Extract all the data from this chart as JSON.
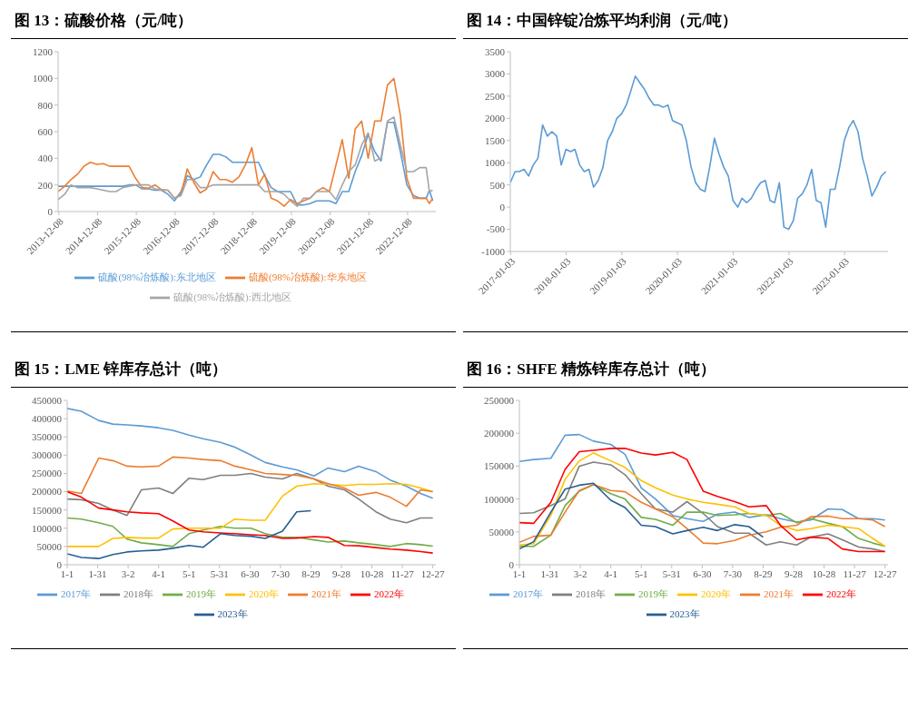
{
  "chart_data": [
    {
      "type": "line",
      "title": "图 13：硫酸价格（元/吨）",
      "legend": "bottom",
      "marker": "none",
      "x": [
        "2013-12",
        "2014-02",
        "2014-04",
        "2014-06",
        "2014-08",
        "2014-10",
        "2014-12",
        "2015-02",
        "2015-04",
        "2015-06",
        "2015-08",
        "2015-10",
        "2015-12",
        "2016-02",
        "2016-04",
        "2016-06",
        "2016-08",
        "2016-10",
        "2016-12",
        "2017-02",
        "2017-04",
        "2017-06",
        "2017-08",
        "2017-10",
        "2017-12",
        "2018-02",
        "2018-04",
        "2018-06",
        "2018-08",
        "2018-10",
        "2018-12",
        "2019-02",
        "2019-04",
        "2019-06",
        "2019-08",
        "2019-10",
        "2019-12",
        "2020-02",
        "2020-04",
        "2020-06",
        "2020-08",
        "2020-10",
        "2020-12",
        "2021-02",
        "2021-04",
        "2021-06",
        "2021-08",
        "2021-10",
        "2021-12",
        "2022-02",
        "2022-04",
        "2022-06",
        "2022-08",
        "2022-10",
        "2022-12",
        "2023-02",
        "2023-04",
        "2023-06",
        "2023-07",
        "2023-08"
      ],
      "series": [
        {
          "name": "硫酸(98%冶炼酸):东北地区",
          "color": "#5b9bd5",
          "values": [
            190,
            190,
            190,
            190,
            190,
            190,
            190,
            190,
            190,
            190,
            190,
            200,
            200,
            170,
            170,
            160,
            160,
            130,
            80,
            150,
            270,
            240,
            260,
            350,
            430,
            430,
            410,
            370,
            370,
            370,
            370,
            370,
            270,
            180,
            150,
            150,
            150,
            50,
            50,
            60,
            80,
            80,
            80,
            60,
            150,
            150,
            300,
            420,
            580,
            450,
            380,
            670,
            670,
            450,
            200,
            120,
            100,
            100,
            160,
            80
          ]
        },
        {
          "name": "硫酸(98%冶炼酸):华东地区",
          "color": "#ed7d31",
          "values": [
            150,
            190,
            240,
            280,
            340,
            370,
            355,
            360,
            340,
            340,
            340,
            340,
            250,
            180,
            175,
            200,
            165,
            160,
            100,
            130,
            320,
            220,
            140,
            170,
            300,
            240,
            240,
            220,
            260,
            350,
            480,
            200,
            280,
            100,
            80,
            40,
            90,
            60,
            80,
            100,
            150,
            180,
            150,
            350,
            540,
            250,
            620,
            680,
            400,
            680,
            680,
            950,
            1000,
            720,
            250,
            100,
            100,
            100,
            60,
            100
          ]
        },
        {
          "name": "硫酸(98%冶炼酸):西北地区",
          "color": "#a5a5a5",
          "values": [
            90,
            130,
            200,
            180,
            180,
            180,
            170,
            160,
            150,
            150,
            180,
            190,
            200,
            200,
            200,
            170,
            160,
            160,
            100,
            120,
            240,
            240,
            180,
            180,
            200,
            200,
            200,
            200,
            200,
            200,
            200,
            200,
            150,
            150,
            150,
            130,
            80,
            40,
            100,
            100,
            150,
            150,
            150,
            90,
            200,
            300,
            350,
            500,
            590,
            380,
            400,
            680,
            710,
            500,
            300,
            300,
            330,
            330,
            150,
            160
          ]
        }
      ],
      "xlim": [
        "2013-12-01",
        "2023-08-31"
      ],
      "xticks": [
        "2013-12-08",
        "2014-12-08",
        "2015-12-08",
        "2016-12-08",
        "2017-12-08",
        "2018-12-08",
        "2019-12-08",
        "2020-12-08",
        "2021-12-08",
        "2022-12-08"
      ],
      "ylim": [
        0,
        1200
      ],
      "yticks": [
        0,
        200,
        400,
        600,
        800,
        1000,
        1200
      ]
    },
    {
      "type": "line",
      "title": "图 14：中国锌锭冶炼平均利润（元/吨）",
      "legend": false,
      "marker": "none",
      "color": "#5b9bd5",
      "x": [
        "2017-01",
        "2017-02",
        "2017-03",
        "2017-04",
        "2017-05",
        "2017-06",
        "2017-07",
        "2017-08",
        "2017-09",
        "2017-10",
        "2017-11",
        "2017-12",
        "2018-01",
        "2018-02",
        "2018-03",
        "2018-04",
        "2018-05",
        "2018-06",
        "2018-07",
        "2018-08",
        "2018-09",
        "2018-10",
        "2018-11",
        "2018-12",
        "2019-01",
        "2019-02",
        "2019-03",
        "2019-04",
        "2019-05",
        "2019-06",
        "2019-07",
        "2019-08",
        "2019-09",
        "2019-10",
        "2019-11",
        "2019-12",
        "2020-01",
        "2020-02",
        "2020-03",
        "2020-04",
        "2020-05",
        "2020-06",
        "2020-07",
        "2020-08",
        "2020-09",
        "2020-10",
        "2020-11",
        "2020-12",
        "2021-01",
        "2021-02",
        "2021-03",
        "2021-04",
        "2021-05",
        "2021-06",
        "2021-07",
        "2021-08",
        "2021-09",
        "2021-10",
        "2021-11",
        "2021-12",
        "2022-01",
        "2022-02",
        "2022-03",
        "2022-04",
        "2022-05",
        "2022-06",
        "2022-07",
        "2022-08",
        "2022-09",
        "2022-10",
        "2022-11",
        "2022-12",
        "2023-01",
        "2023-02",
        "2023-03",
        "2023-04",
        "2023-05",
        "2023-06",
        "2023-07",
        "2023-08",
        "2023-09",
        "2023-10"
      ],
      "values": [
        550,
        800,
        800,
        850,
        700,
        950,
        1100,
        1850,
        1600,
        1700,
        1600,
        950,
        1300,
        1250,
        1300,
        950,
        800,
        850,
        450,
        600,
        900,
        1500,
        1700,
        2000,
        2100,
        2300,
        2600,
        2950,
        2800,
        2650,
        2450,
        2300,
        2300,
        2250,
        2300,
        1950,
        1900,
        1850,
        1500,
        900,
        550,
        400,
        350,
        900,
        1550,
        1200,
        900,
        700,
        150,
        0,
        200,
        100,
        200,
        400,
        550,
        600,
        150,
        100,
        550,
        -450,
        -500,
        -300,
        200,
        300,
        500,
        850,
        150,
        100,
        -450,
        400,
        400,
        900,
        1500,
        1800,
        1950,
        1700,
        1100,
        700,
        250,
        450,
        700,
        800
      ],
      "xlim": [
        "2017-01-01",
        "2023-10-15"
      ],
      "xticks": [
        "2017-01-03",
        "2018-01-03",
        "2019-01-03",
        "2020-01-03",
        "2021-01-03",
        "2022-01-03",
        "2023-01-03"
      ],
      "ylim": [
        -1000,
        3500
      ],
      "yticks": [
        -1000,
        -500,
        0,
        500,
        1000,
        1500,
        2000,
        2500,
        3000,
        3500
      ]
    },
    {
      "type": "line",
      "title": "图 15：LME 锌库存总计（吨）",
      "legend": "bottom",
      "marker": "none",
      "x": [
        "--01-01",
        "--01-15",
        "--02-01",
        "--02-15",
        "--03-01",
        "--03-15",
        "--04-01",
        "--04-15",
        "--05-01",
        "--05-15",
        "--06-01",
        "--06-15",
        "--07-01",
        "--07-15",
        "--08-01",
        "--08-15",
        "--09-01",
        "--09-15",
        "--10-01",
        "--10-15",
        "--11-01",
        "--11-15",
        "--12-01",
        "--12-15",
        "--12-27"
      ],
      "series": [
        {
          "name": "2017年",
          "color": "#5b9bd5",
          "values": [
            428000,
            420000,
            395000,
            385000,
            383000,
            380000,
            375000,
            368000,
            355000,
            345000,
            335000,
            322000,
            300000,
            280000,
            268000,
            260000,
            243000,
            265000,
            255000,
            270000,
            255000,
            232000,
            215000,
            195000,
            182000
          ]
        },
        {
          "name": "2018年",
          "color": "#7f7f7f",
          "values": [
            180000,
            178000,
            168000,
            150000,
            135000,
            205000,
            210000,
            195000,
            237000,
            233000,
            245000,
            245000,
            250000,
            240000,
            235000,
            250000,
            235000,
            215000,
            205000,
            180000,
            145000,
            125000,
            115000,
            128000,
            128000
          ]
        },
        {
          "name": "2019年",
          "color": "#70ad47",
          "values": [
            128000,
            125000,
            115000,
            105000,
            70000,
            60000,
            55000,
            50000,
            85000,
            95000,
            105000,
            100000,
            100000,
            85000,
            75000,
            75000,
            68000,
            62000,
            65000,
            60000,
            55000,
            50000,
            58000,
            55000,
            51000
          ]
        },
        {
          "name": "2020年",
          "color": "#ffc000",
          "values": [
            50000,
            50000,
            50000,
            72000,
            75000,
            73000,
            73000,
            98000,
            100000,
            100000,
            100000,
            125000,
            122000,
            122000,
            188000,
            215000,
            222000,
            220000,
            217000,
            220000,
            220000,
            222000,
            220000,
            210000,
            200000
          ]
        },
        {
          "name": "2021年",
          "color": "#ed7d31",
          "values": [
            202000,
            195000,
            292000,
            285000,
            270000,
            268000,
            270000,
            295000,
            292000,
            288000,
            285000,
            270000,
            260000,
            250000,
            247000,
            245000,
            235000,
            222000,
            210000,
            190000,
            198000,
            185000,
            160000,
            205000,
            200000
          ]
        },
        {
          "name": "2022年",
          "color": "#ff0000",
          "values": [
            200000,
            185000,
            155000,
            150000,
            145000,
            142000,
            140000,
            120000,
            95000,
            90000,
            87000,
            85000,
            82000,
            80000,
            72000,
            73000,
            77000,
            75000,
            53000,
            52000,
            47000,
            43000,
            40000,
            36000,
            32000
          ]
        },
        {
          "name": "2023年",
          "color": "#255e91",
          "x": [
            "--01-01",
            "--01-15",
            "--02-01",
            "--02-15",
            "--03-01",
            "--03-15",
            "--04-01",
            "--04-15",
            "--05-01",
            "--05-15",
            "--06-01",
            "--06-15",
            "--07-01",
            "--07-15",
            "--08-01",
            "--08-15",
            "--08-29"
          ],
          "values": [
            30000,
            20000,
            17000,
            28000,
            35000,
            38000,
            40000,
            45000,
            53000,
            48000,
            85000,
            80000,
            78000,
            72000,
            92000,
            145000,
            148000
          ]
        }
      ],
      "xlim": [
        "--01-01",
        "--12-30"
      ],
      "xticks": [
        {
          "value": "--01-01",
          "label": "1-1"
        },
        {
          "value": "--01-31",
          "label": "1-31"
        },
        {
          "value": "--03-02",
          "label": "3-2"
        },
        {
          "value": "--04-01",
          "label": "4-1"
        },
        {
          "value": "--05-01",
          "label": "5-1"
        },
        {
          "value": "--05-31",
          "label": "5-31"
        },
        {
          "value": "--06-30",
          "label": "6-30"
        },
        {
          "value": "--07-30",
          "label": "7-30"
        },
        {
          "value": "--08-29",
          "label": "8-29"
        },
        {
          "value": "--09-28",
          "label": "9-28"
        },
        {
          "value": "--10-28",
          "label": "10-28"
        },
        {
          "value": "--11-27",
          "label": "11-27"
        },
        {
          "value": "--12-27",
          "label": "12-27"
        }
      ],
      "ylim": [
        0,
        450000
      ],
      "yticks": [
        0,
        50000,
        100000,
        150000,
        200000,
        250000,
        300000,
        350000,
        400000,
        450000
      ]
    },
    {
      "type": "line",
      "title": "图 16：SHFE 精炼锌库存总计（吨）",
      "legend": "bottom",
      "marker": "none",
      "x": [
        "--01-01",
        "--01-15",
        "--02-01",
        "--02-15",
        "--03-01",
        "--03-15",
        "--04-01",
        "--04-15",
        "--05-01",
        "--05-15",
        "--06-01",
        "--06-15",
        "--07-01",
        "--07-15",
        "--08-01",
        "--08-15",
        "--09-01",
        "--09-15",
        "--10-01",
        "--10-15",
        "--11-01",
        "--11-15",
        "--12-01",
        "--12-15",
        "--12-27"
      ],
      "series": [
        {
          "name": "2017年",
          "color": "#5b9bd5",
          "values": [
            157000,
            160000,
            162000,
            197000,
            198000,
            188000,
            183000,
            168000,
            117000,
            100000,
            75000,
            70000,
            66000,
            77000,
            80000,
            72000,
            76000,
            70000,
            65000,
            68000,
            85000,
            84000,
            70000,
            70000,
            68000
          ]
        },
        {
          "name": "2018年",
          "color": "#7f7f7f",
          "values": [
            78000,
            79000,
            90000,
            100000,
            150000,
            156000,
            152000,
            137000,
            108000,
            85000,
            80000,
            96000,
            78000,
            58000,
            48000,
            48000,
            30000,
            35000,
            30000,
            42000,
            47000,
            38000,
            27000,
            24000,
            20000
          ]
        },
        {
          "name": "2019年",
          "color": "#70ad47",
          "values": [
            28000,
            28000,
            45000,
            90000,
            112000,
            122000,
            108000,
            100000,
            72000,
            69000,
            60000,
            80000,
            80000,
            75000,
            76000,
            78000,
            75000,
            78000,
            64000,
            70000,
            63000,
            58000,
            40000,
            33000,
            28000
          ]
        },
        {
          "name": "2020年",
          "color": "#ffc000",
          "values": [
            30000,
            32000,
            75000,
            130000,
            158000,
            170000,
            158000,
            148000,
            128000,
            117000,
            106000,
            100000,
            95000,
            92000,
            88000,
            78000,
            75000,
            60000,
            52000,
            55000,
            60000,
            58000,
            55000,
            40000,
            28000
          ]
        },
        {
          "name": "2021年",
          "color": "#ed7d31",
          "values": [
            34000,
            43000,
            45000,
            80000,
            113000,
            122000,
            113000,
            111000,
            95000,
            85000,
            73000,
            55000,
            33000,
            32000,
            37000,
            45000,
            50000,
            57000,
            60000,
            73000,
            74000,
            70000,
            70000,
            68000,
            58000
          ]
        },
        {
          "name": "2022年",
          "color": "#ff0000",
          "values": [
            64000,
            63000,
            95000,
            145000,
            172000,
            174000,
            177000,
            177000,
            170000,
            167000,
            171000,
            160000,
            112000,
            104000,
            96000,
            88000,
            90000,
            60000,
            38000,
            42000,
            40000,
            24000,
            20000,
            20000,
            20000
          ]
        },
        {
          "name": "2023年",
          "color": "#255e91",
          "x": [
            "--01-01",
            "--01-15",
            "--02-01",
            "--02-15",
            "--03-01",
            "--03-15",
            "--04-01",
            "--04-15",
            "--05-01",
            "--05-15",
            "--06-01",
            "--06-15",
            "--07-01",
            "--07-15",
            "--08-01",
            "--08-15",
            "--08-29"
          ],
          "values": [
            24000,
            35000,
            80000,
            115000,
            121000,
            124000,
            98000,
            87000,
            60000,
            58000,
            47000,
            52000,
            57000,
            52000,
            61000,
            58000,
            42000
          ]
        }
      ],
      "xlim": [
        "--01-01",
        "--12-30"
      ],
      "xticks": [
        {
          "value": "--01-01",
          "label": "1-1"
        },
        {
          "value": "--01-31",
          "label": "1-31"
        },
        {
          "value": "--03-02",
          "label": "3-2"
        },
        {
          "value": "--04-01",
          "label": "4-1"
        },
        {
          "value": "--05-01",
          "label": "5-1"
        },
        {
          "value": "--05-31",
          "label": "5-31"
        },
        {
          "value": "--06-30",
          "label": "6-30"
        },
        {
          "value": "--07-30",
          "label": "7-30"
        },
        {
          "value": "--08-29",
          "label": "8-29"
        },
        {
          "value": "--09-28",
          "label": "9-28"
        },
        {
          "value": "--10-28",
          "label": "10-28"
        },
        {
          "value": "--11-27",
          "label": "11-27"
        },
        {
          "value": "--12-27",
          "label": "12-27"
        }
      ],
      "ylim": [
        0,
        250000
      ],
      "yticks": [
        0,
        50000,
        100000,
        150000,
        200000,
        250000
      ]
    }
  ]
}
